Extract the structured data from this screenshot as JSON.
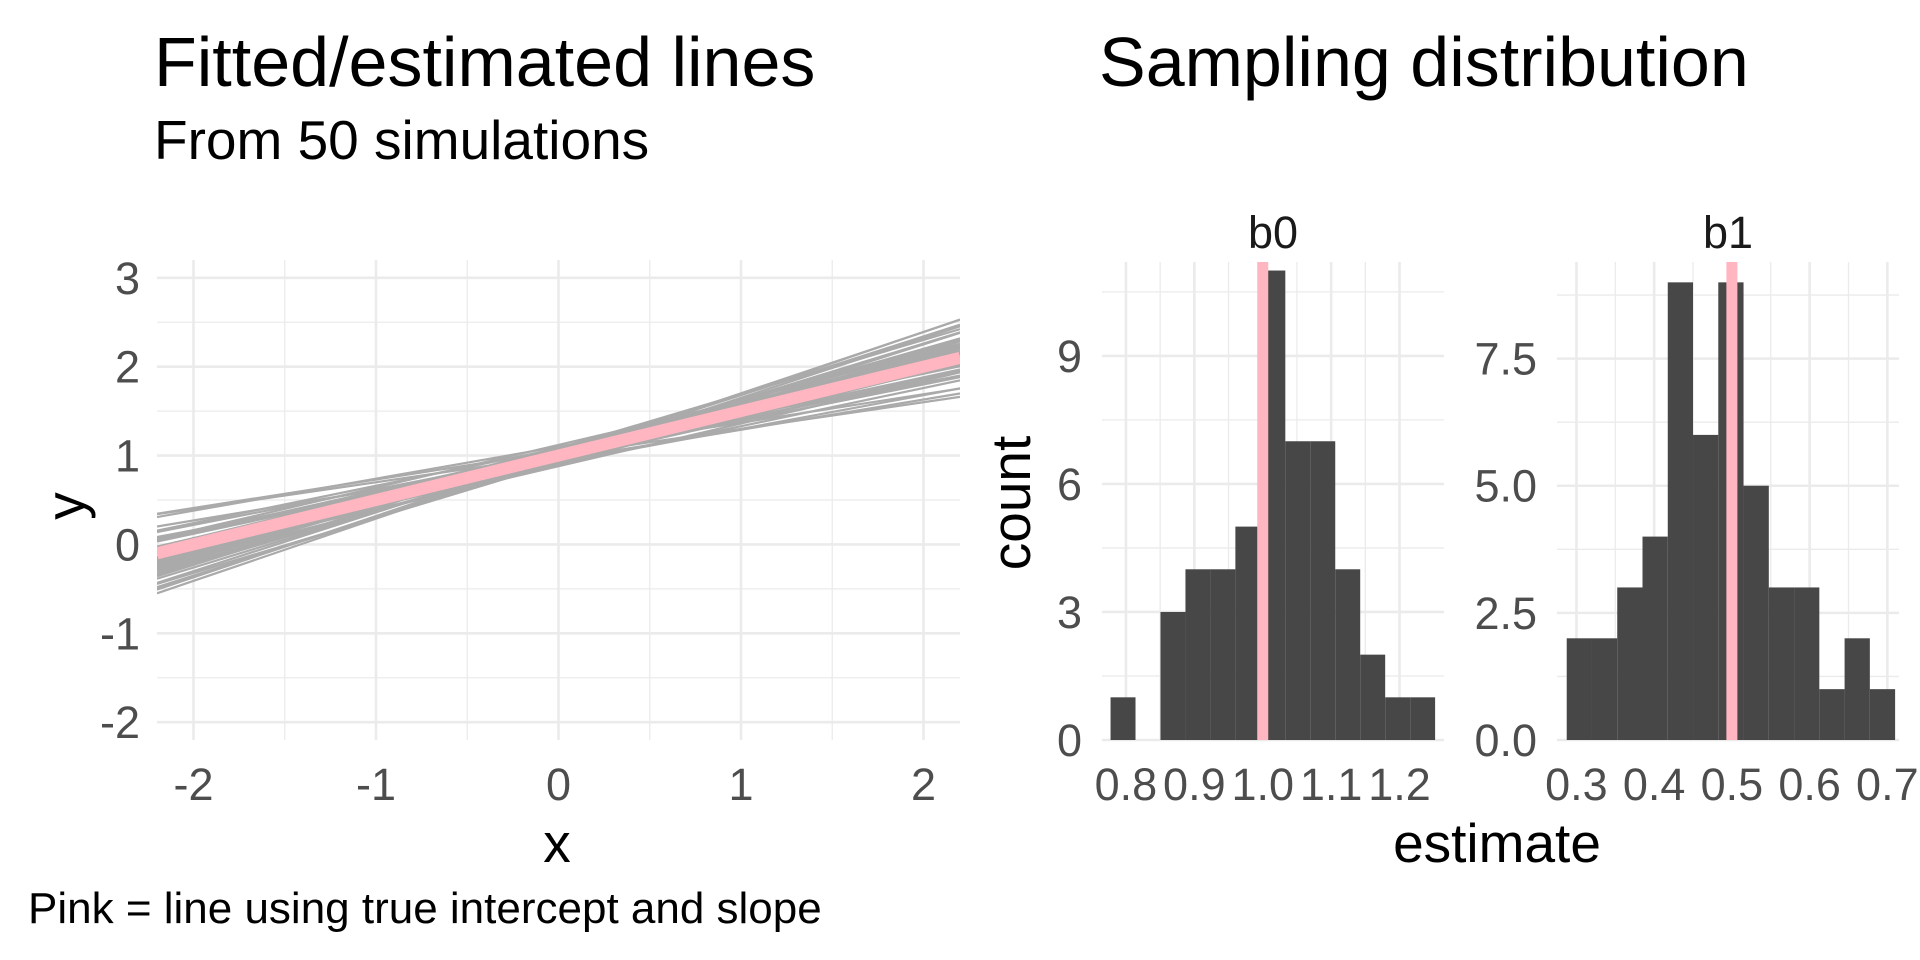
{
  "left_panel": {
    "title": "Fitted/estimated lines",
    "subtitle": "From 50 simulations",
    "caption": "Pink = line using true intercept and slope"
  },
  "right_panel": {
    "title": "Sampling distribution"
  },
  "colors": {
    "simulated_line": "#aaaaaa",
    "true_line": "#ffb6c1",
    "bar": "#474747",
    "grid": "#ebebeb"
  },
  "chart_data": [
    {
      "type": "line",
      "xlabel": "x",
      "ylabel": "y",
      "xlim": [
        -2.2,
        2.2
      ],
      "ylim": [
        -2.2,
        3.2
      ],
      "x_ticks": [
        "-2",
        "-1",
        "0",
        "1",
        "2"
      ],
      "y_ticks": [
        "-2",
        "-1",
        "0",
        "1",
        "2",
        "3"
      ],
      "grid": true,
      "true_line": {
        "intercept": 1.0,
        "slope": 0.5
      },
      "simulated_lines": [
        {
          "intercept": 1.0,
          "slope": 0.3
        },
        {
          "intercept": 1.05,
          "slope": 0.32
        },
        {
          "intercept": 0.95,
          "slope": 0.34
        },
        {
          "intercept": 1.1,
          "slope": 0.36
        },
        {
          "intercept": 0.92,
          "slope": 0.38
        },
        {
          "intercept": 1.02,
          "slope": 0.4
        },
        {
          "intercept": 0.98,
          "slope": 0.41
        },
        {
          "intercept": 1.08,
          "slope": 0.42
        },
        {
          "intercept": 0.9,
          "slope": 0.43
        },
        {
          "intercept": 1.0,
          "slope": 0.44
        },
        {
          "intercept": 1.04,
          "slope": 0.45
        },
        {
          "intercept": 0.96,
          "slope": 0.45
        },
        {
          "intercept": 1.06,
          "slope": 0.46
        },
        {
          "intercept": 0.94,
          "slope": 0.46
        },
        {
          "intercept": 1.01,
          "slope": 0.47
        },
        {
          "intercept": 0.99,
          "slope": 0.47
        },
        {
          "intercept": 1.12,
          "slope": 0.48
        },
        {
          "intercept": 0.88,
          "slope": 0.48
        },
        {
          "intercept": 1.03,
          "slope": 0.48
        },
        {
          "intercept": 0.97,
          "slope": 0.49
        },
        {
          "intercept": 1.0,
          "slope": 0.49
        },
        {
          "intercept": 1.07,
          "slope": 0.5
        },
        {
          "intercept": 0.93,
          "slope": 0.5
        },
        {
          "intercept": 1.02,
          "slope": 0.5
        },
        {
          "intercept": 0.98,
          "slope": 0.51
        },
        {
          "intercept": 1.05,
          "slope": 0.51
        },
        {
          "intercept": 0.95,
          "slope": 0.52
        },
        {
          "intercept": 1.0,
          "slope": 0.52
        },
        {
          "intercept": 1.09,
          "slope": 0.53
        },
        {
          "intercept": 0.91,
          "slope": 0.53
        },
        {
          "intercept": 1.03,
          "slope": 0.54
        },
        {
          "intercept": 0.97,
          "slope": 0.54
        },
        {
          "intercept": 1.01,
          "slope": 0.55
        },
        {
          "intercept": 0.99,
          "slope": 0.55
        },
        {
          "intercept": 1.06,
          "slope": 0.56
        },
        {
          "intercept": 0.94,
          "slope": 0.56
        },
        {
          "intercept": 1.0,
          "slope": 0.57
        },
        {
          "intercept": 1.04,
          "slope": 0.58
        },
        {
          "intercept": 0.96,
          "slope": 0.58
        },
        {
          "intercept": 1.02,
          "slope": 0.59
        },
        {
          "intercept": 0.98,
          "slope": 0.6
        },
        {
          "intercept": 1.08,
          "slope": 0.61
        },
        {
          "intercept": 0.92,
          "slope": 0.62
        },
        {
          "intercept": 1.0,
          "slope": 0.63
        },
        {
          "intercept": 1.05,
          "slope": 0.64
        },
        {
          "intercept": 0.95,
          "slope": 0.65
        },
        {
          "intercept": 1.02,
          "slope": 0.66
        },
        {
          "intercept": 0.98,
          "slope": 0.67
        },
        {
          "intercept": 1.01,
          "slope": 0.69
        },
        {
          "intercept": 0.99,
          "slope": 0.7
        }
      ]
    },
    {
      "type": "bar",
      "facet": "b0",
      "ylabel": "count",
      "xlabel": "estimate",
      "xlim": [
        0.765,
        1.265
      ],
      "ylim": [
        0,
        11.2
      ],
      "x_ticks": [
        {
          "value": 0.8,
          "label": "0.8"
        },
        {
          "value": 0.9,
          "label": "0.9"
        },
        {
          "value": 1.0,
          "label": "1.0"
        },
        {
          "value": 1.1,
          "label": "1.1"
        },
        {
          "value": 1.2,
          "label": "1.2"
        }
      ],
      "y_ticks": [
        "0",
        "3",
        "6",
        "9"
      ],
      "y_tick_values": [
        0,
        3,
        6,
        9
      ],
      "reference_line": 1.0,
      "bins": [
        {
          "start": 0.7775,
          "end": 0.814,
          "count": 1
        },
        {
          "start": 0.814,
          "end": 0.8505,
          "count": 0
        },
        {
          "start": 0.8505,
          "end": 0.887,
          "count": 3
        },
        {
          "start": 0.887,
          "end": 0.9235,
          "count": 4
        },
        {
          "start": 0.9235,
          "end": 0.96,
          "count": 4
        },
        {
          "start": 0.96,
          "end": 0.9965,
          "count": 5
        },
        {
          "start": 0.9965,
          "end": 1.033,
          "count": 11
        },
        {
          "start": 1.033,
          "end": 1.0695,
          "count": 7
        },
        {
          "start": 1.0695,
          "end": 1.106,
          "count": 7
        },
        {
          "start": 1.106,
          "end": 1.1425,
          "count": 4
        },
        {
          "start": 1.1425,
          "end": 1.179,
          "count": 2
        },
        {
          "start": 1.179,
          "end": 1.2155,
          "count": 1
        },
        {
          "start": 1.2155,
          "end": 1.252,
          "count": 1
        }
      ]
    },
    {
      "type": "bar",
      "facet": "b1",
      "ylabel": "count",
      "xlabel": "estimate",
      "xlim": [
        0.275,
        0.715
      ],
      "ylim": [
        0,
        9.4
      ],
      "x_ticks": [
        {
          "value": 0.3,
          "label": "0.3"
        },
        {
          "value": 0.4,
          "label": "0.4"
        },
        {
          "value": 0.5,
          "label": "0.5"
        },
        {
          "value": 0.6,
          "label": "0.6"
        },
        {
          "value": 0.7,
          "label": "0.7"
        }
      ],
      "y_ticks": [
        "0.0",
        "2.5",
        "5.0",
        "7.5"
      ],
      "y_tick_values": [
        0,
        2.5,
        5,
        7.5
      ],
      "reference_line": 0.5,
      "bins": [
        {
          "start": 0.2875,
          "end": 0.32,
          "count": 2
        },
        {
          "start": 0.32,
          "end": 0.3525,
          "count": 2
        },
        {
          "start": 0.3525,
          "end": 0.385,
          "count": 3
        },
        {
          "start": 0.385,
          "end": 0.4175,
          "count": 4
        },
        {
          "start": 0.4175,
          "end": 0.45,
          "count": 9
        },
        {
          "start": 0.45,
          "end": 0.4825,
          "count": 6
        },
        {
          "start": 0.4825,
          "end": 0.515,
          "count": 9
        },
        {
          "start": 0.515,
          "end": 0.5475,
          "count": 5
        },
        {
          "start": 0.5475,
          "end": 0.58,
          "count": 3
        },
        {
          "start": 0.58,
          "end": 0.6125,
          "count": 3
        },
        {
          "start": 0.6125,
          "end": 0.645,
          "count": 1
        },
        {
          "start": 0.645,
          "end": 0.6775,
          "count": 2
        },
        {
          "start": 0.6775,
          "end": 0.71,
          "count": 1
        }
      ]
    }
  ]
}
